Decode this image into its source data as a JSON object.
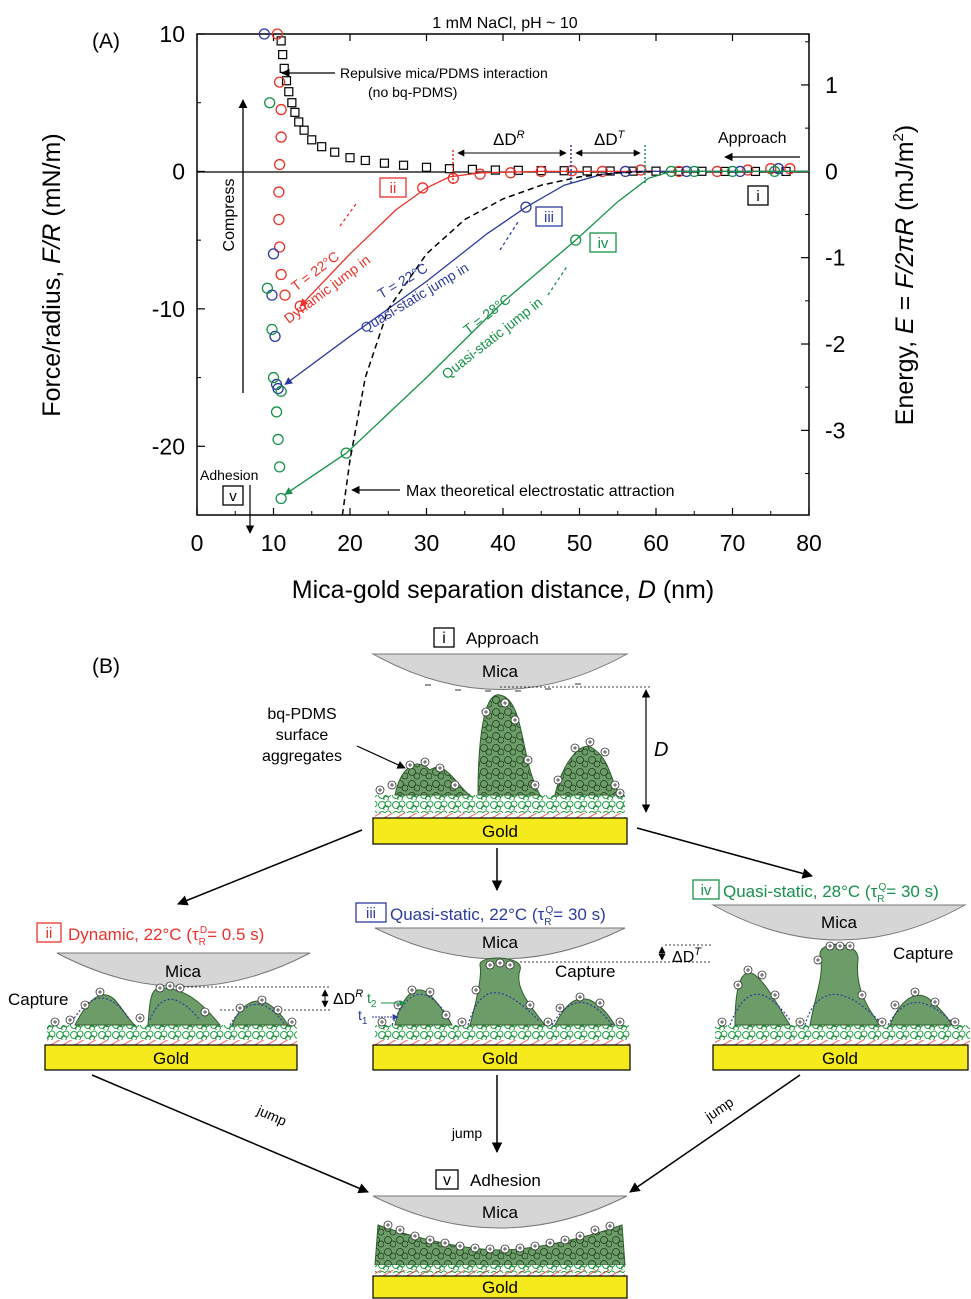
{
  "panel_a": {
    "label": "(A)",
    "title": "1 mM NaCl, pH ~ 10",
    "x_label": "Mica-gold separation distance, ",
    "x_label_var": "D",
    "x_label_unit": " (nm)",
    "y_left_label": "Force/radius, ",
    "y_left_var": "F/R",
    "y_left_unit": " (mN/m)",
    "y_right_label": "Energy, ",
    "y_right_var": "E",
    "y_right_eq": " = ",
    "y_right_expr": "F/2πR",
    "y_right_unit": " (mJ/m",
    "y_right_unit_sup": "2",
    "y_right_unit_close": ")",
    "annotations": {
      "repulsive_1": "Repulsive mica/PDMS interaction",
      "repulsive_2": "(no bq-PDMS)",
      "approach": "Approach",
      "compress": "Compress",
      "adhesion": "Adhesion",
      "max_theory": "Max theoretical electrostatic attraction",
      "dyn_t": "T = 22°C",
      "dyn_jump": "Dynamic jump in",
      "qs22_t": "T = 22°C",
      "qs22_jump": "Quasi-static jump in",
      "qs28_t": "T = 28°C",
      "qs28_jump": "Quasi-static jump in",
      "delta_dr": "ΔD",
      "delta_dr_sup": "R",
      "delta_dt": "ΔD",
      "delta_dt_sup": "T"
    },
    "markers": {
      "i": "i",
      "ii": "ii",
      "iii": "iii",
      "iv": "iv",
      "v": "v"
    }
  },
  "colors": {
    "red": "#e8322a",
    "blue": "#2e3b9e",
    "green": "#17914a",
    "gold": "#f4ea1c",
    "mica": "#d6d6d6",
    "aggregate": "#6c9c68"
  },
  "chart_data": {
    "type": "scatter",
    "xlabel": "Mica-gold separation distance, D (nm)",
    "ylabel": "Force/radius, F/R (mN/m)",
    "y2label": "Energy, E = F/2πR (mJ/m2)",
    "xlim": [
      0,
      80
    ],
    "ylim": [
      -25,
      10
    ],
    "y2lim": [
      -3.98,
      1.59
    ],
    "x_ticks": [
      0,
      10,
      20,
      30,
      40,
      50,
      60,
      70,
      80
    ],
    "y_ticks": [
      10,
      0,
      -10,
      -20
    ],
    "y2_ticks": [
      1,
      0,
      -1,
      -2,
      -3
    ],
    "series": [
      {
        "name": "Repulsive mica/PDMS interaction (no bq-PDMS)",
        "marker": "square",
        "color": "#000000",
        "x": [
          11,
          11.2,
          11.4,
          11.7,
          12,
          12.4,
          12.8,
          13.3,
          14,
          15,
          16.3,
          18,
          20,
          22,
          24.5,
          27,
          30,
          33,
          36,
          39,
          42,
          45,
          48,
          51,
          54,
          57,
          60,
          63,
          66,
          69,
          73,
          77
        ],
        "y": [
          9.5,
          8.5,
          7.5,
          6.6,
          5.8,
          5.0,
          4.3,
          3.6,
          3.0,
          2.3,
          1.8,
          1.4,
          1.0,
          0.8,
          0.6,
          0.45,
          0.3,
          0.2,
          0.15,
          0.1,
          0.08,
          0.06,
          0.05,
          0.04,
          0.03,
          0.02,
          0.02,
          0.01,
          0.01,
          0,
          0,
          0
        ]
      },
      {
        "name": "T = 22°C Dynamic jump in",
        "marker": "circle",
        "color": "#e8322a",
        "x": [
          10.5,
          10.8,
          11,
          11,
          10.8,
          10.7,
          10.7,
          10.8,
          11,
          11.5,
          13.5,
          29.5,
          33.5,
          37,
          41,
          45,
          49,
          53,
          58,
          63,
          68,
          72,
          75,
          77.5
        ],
        "y": [
          10,
          6.5,
          4.5,
          2.5,
          0.5,
          -1.5,
          -3.5,
          -5.5,
          -7.5,
          -9,
          -9.8,
          -1.2,
          -0.5,
          -0.2,
          -0.1,
          0,
          0.05,
          0,
          0.1,
          0,
          0,
          0.1,
          0.2,
          0.2
        ],
        "curve_x": [
          13.5,
          20,
          26,
          30,
          33,
          37,
          45,
          55,
          65,
          80
        ],
        "curve_y": [
          -9.8,
          -6,
          -2.8,
          -1.2,
          -0.4,
          -0.1,
          0,
          0,
          0,
          0
        ]
      },
      {
        "name": "T = 22°C Quasi-static jump in",
        "marker": "circle",
        "color": "#2e3b9e",
        "x": [
          8.8,
          10,
          9.8,
          10.2,
          10.4,
          10.6,
          43,
          56,
          64,
          71,
          76
        ],
        "y": [
          10,
          -6,
          -9,
          -12,
          -15.5,
          -15.8,
          -2.6,
          0,
          0,
          0,
          0.2
        ],
        "curve_x": [
          11.5,
          20,
          30,
          38,
          43,
          48,
          53,
          58,
          63,
          80
        ],
        "curve_y": [
          -15.5,
          -12,
          -8,
          -4.5,
          -2.6,
          -1,
          -0.2,
          0,
          0,
          0
        ]
      },
      {
        "name": "T = 28°C Quasi-static jump in",
        "marker": "circle",
        "color": "#17914a",
        "x": [
          9.5,
          9.2,
          9.8,
          10,
          10.4,
          10.6,
          10.8,
          11,
          11,
          19.5,
          49.5,
          62,
          65,
          70,
          75.5
        ],
        "y": [
          5,
          -8.5,
          -11.5,
          -15,
          -17.5,
          -19.5,
          -21.5,
          -23.8,
          -16,
          -20.5,
          -5,
          0,
          0,
          0,
          0
        ],
        "curve_x": [
          11.5,
          19.5,
          30,
          40,
          49.5,
          55,
          59,
          62,
          80
        ],
        "curve_y": [
          -23.5,
          -20.5,
          -15,
          -9.5,
          -5,
          -2.2,
          -0.5,
          0,
          0
        ]
      },
      {
        "name": "Max theoretical electrostatic attraction",
        "marker": "dashed-line",
        "color": "#000000",
        "x": [
          19,
          20,
          22,
          25,
          30,
          35,
          40,
          45,
          50,
          55,
          60
        ],
        "y": [
          -25,
          -21,
          -15,
          -10,
          -6,
          -3.5,
          -2,
          -1,
          -0.4,
          -0.1,
          0
        ]
      }
    ],
    "annotations": [
      "ΔD^R",
      "ΔD^T",
      "Approach",
      "Compress",
      "Adhesion"
    ]
  },
  "panel_b": {
    "label": "(B)",
    "approach_tag": "i",
    "approach_label": "Approach",
    "mica": "Mica",
    "gold": "Gold",
    "agg_1": "bq-PDMS",
    "agg_2": "surface",
    "agg_3": "aggregates",
    "d_label": "D",
    "dyn_tag": "ii",
    "dyn_label": "Dynamic, 22°C (τ",
    "dyn_sub": "R",
    "dyn_sup": "D",
    "dyn_val": "= 0.5 s)",
    "qs22_tag": "iii",
    "qs22_label": "Quasi-static, 22°C (τ",
    "qs22_sub": "R",
    "qs22_sup": "Q",
    "qs22_val": "= 30 s)",
    "qs28_tag": "iv",
    "qs28_label": "Quasi-static, 28°C (τ",
    "qs28_sub": "R",
    "qs28_sup": "Q",
    "qs28_val": "= 30 s)",
    "capture": "Capture",
    "delta_dr": "ΔD",
    "delta_dr_sup": "R",
    "delta_dt": "ΔD",
    "delta_dt_sup": "T",
    "t1": "t",
    "t1_sub": "1",
    "t2": "t",
    "t2_sub": "2",
    "jump": "jump",
    "adhesion_tag": "v",
    "adhesion_label": "Adhesion"
  }
}
